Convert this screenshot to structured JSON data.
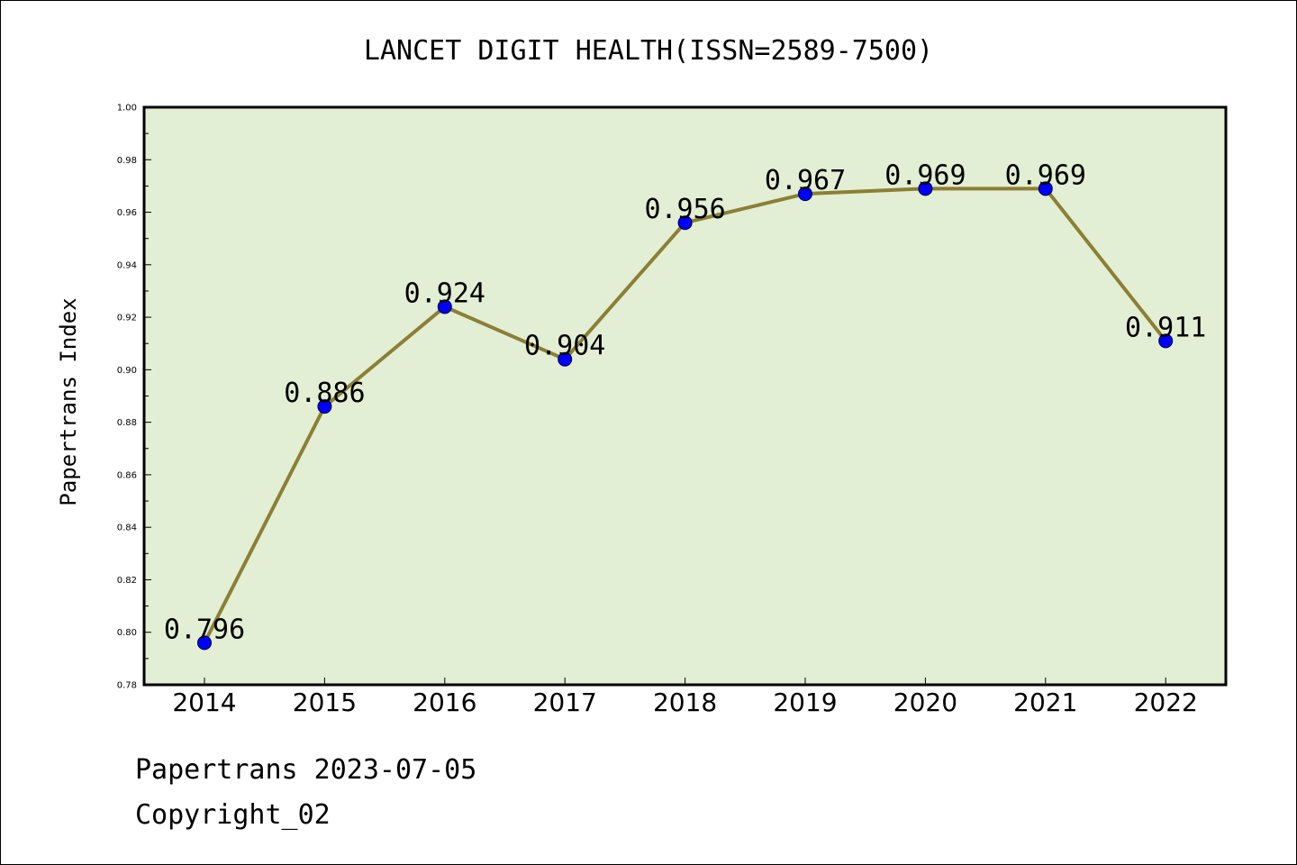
{
  "chart_data": {
    "type": "line",
    "title": "LANCET DIGIT HEALTH(ISSN=2589-7500)",
    "xlabel": "",
    "ylabel": "Papertrans Index",
    "categories": [
      "2014",
      "2015",
      "2016",
      "2017",
      "2018",
      "2019",
      "2020",
      "2021",
      "2022"
    ],
    "values": [
      0.796,
      0.886,
      0.924,
      0.904,
      0.956,
      0.967,
      0.969,
      0.969,
      0.911
    ],
    "data_labels": [
      "0.796",
      "0.886",
      "0.924",
      "0.904",
      "0.956",
      "0.967",
      "0.969",
      "0.969",
      "0.911"
    ],
    "ylim": [
      0.78,
      1.0
    ],
    "yticks": [
      "0.78",
      "0.80",
      "0.82",
      "0.84",
      "0.86",
      "0.88",
      "0.90",
      "0.92",
      "0.94",
      "0.96",
      "0.98",
      "1.00"
    ],
    "grid": false,
    "colors": {
      "plot_background": "#e2efd4",
      "line": "#8c7f35",
      "marker": "#0000ff"
    }
  },
  "footer": {
    "line1": "Papertrans 2023-07-05",
    "line2": "Copyright_02"
  }
}
